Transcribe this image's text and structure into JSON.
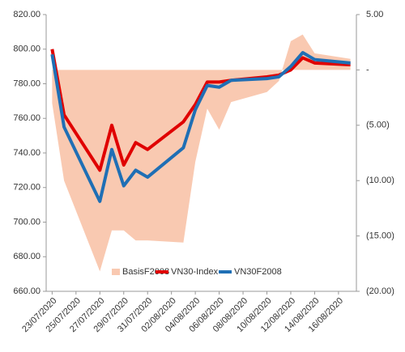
{
  "chart_data": {
    "type": "line-area",
    "x": [
      "23/07/2020",
      "24/07/2020",
      "27/07/2020",
      "28/07/2020",
      "29/07/2020",
      "30/07/2020",
      "31/07/2020",
      "03/08/2020",
      "04/08/2020",
      "05/08/2020",
      "06/08/2020",
      "07/08/2020",
      "10/08/2020",
      "11/08/2020",
      "12/08/2020",
      "13/08/2020",
      "14/08/2020",
      "17/08/2020"
    ],
    "xlim": [
      "23/07/2020",
      "17/08/2020"
    ],
    "xticks": [
      "23/07/2020",
      "25/07/2020",
      "27/07/2020",
      "29/07/2020",
      "31/07/2020",
      "02/08/2020",
      "04/08/2020",
      "06/08/2020",
      "08/08/2020",
      "10/08/2020",
      "12/08/2020",
      "14/08/2020",
      "16/08/2020"
    ],
    "series": [
      {
        "name": "BasisF2008",
        "color": "#f9c9b1",
        "axis": "y2",
        "kind": "area",
        "values": [
          -3,
          -10,
          -18.2,
          -14.5,
          -14.5,
          -15.4,
          -15.4,
          -15.6,
          -8.3,
          -3.5,
          -5.4,
          -2.9,
          -2,
          -1,
          2.6,
          3.2,
          1.5,
          1
        ]
      },
      {
        "name": "VN30-Index",
        "color": "#e00000",
        "kind": "line",
        "values": [
          800,
          762,
          730,
          756,
          733,
          746,
          742,
          758,
          768,
          781,
          781,
          782,
          784,
          785,
          788,
          795,
          792,
          791
        ]
      },
      {
        "name": "VN30F2008",
        "color": "#1f6fb5",
        "kind": "line",
        "values": [
          797,
          755,
          712,
          742,
          721,
          730,
          726,
          743,
          765,
          779,
          778,
          782,
          783,
          784,
          790,
          798,
          794,
          792
        ]
      }
    ],
    "ylim": [
      660,
      820
    ],
    "yticks": [
      {
        "value": 660,
        "label": "660.00"
      },
      {
        "value": 680,
        "label": "680.00"
      },
      {
        "value": 700,
        "label": "700.00"
      },
      {
        "value": 720,
        "label": "720.00"
      },
      {
        "value": 740,
        "label": "740.00"
      },
      {
        "value": 760,
        "label": "760.00"
      },
      {
        "value": 780,
        "label": "780.00"
      },
      {
        "value": 800,
        "label": "800.00"
      },
      {
        "value": 820,
        "label": "820.00"
      }
    ],
    "y2lim": [
      -20,
      5
    ],
    "y2ticks": [
      {
        "value": 5,
        "label": "5.00"
      },
      {
        "value": 0,
        "label": "-"
      },
      {
        "value": -5,
        "label": "(5.00)"
      },
      {
        "value": -10,
        "label": "(10.00)"
      },
      {
        "value": -15,
        "label": "(15.00)"
      },
      {
        "value": -20,
        "label": "(20.00)"
      }
    ],
    "legend": "bottom"
  }
}
